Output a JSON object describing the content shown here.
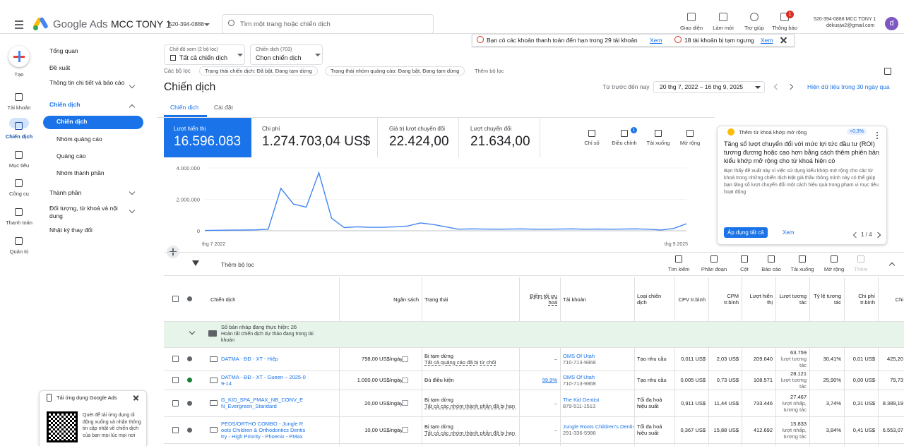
{
  "topbar": {
    "product": "Google Ads",
    "account_name": "MCC TONY 1",
    "account_id": "520-394-0888",
    "search_placeholder": "Tìm một trang hoặc chiến dịch",
    "actions": [
      "Giao diện",
      "Làm mới",
      "Trợ giúp",
      "Thông báo"
    ],
    "notification_count": 1,
    "user_line": "520-394-0888 MCC TONY 1",
    "user_email": "dekusjw2@gmail.com",
    "avatar": "d"
  },
  "alerts": [
    {
      "text": "Bạn có các khoản thanh toán đến hạn trong 29 tài khoản",
      "link": "Xem"
    },
    {
      "text": "18 tài khoản bị tạm ngưng",
      "link": "Xem"
    }
  ],
  "rail": [
    "Tạo",
    "Tài khoản",
    "Chiến dịch",
    "Mục tiêu",
    "Công cụ",
    "Thanh toán",
    "Quản trị"
  ],
  "nav": [
    "Tổng quan",
    "Đề xuất",
    "Thông tin chi tiết và báo cáo",
    "Chiến dịch",
    "Chiến dịch",
    "Nhóm quảng cáo",
    "Quảng cáo",
    "Nhóm thành phần",
    "Thành phần",
    "Đối tượng, từ khoá và nội dung",
    "Nhật ký thay đổi"
  ],
  "app_promo": {
    "title": "Tải ứng dụng Google Ads",
    "text": "Quét để tải ứng dụng di động xuống và nhận thông tin cập nhật về chiến dịch của bạn mọi lúc mọi nơi"
  },
  "filters": {
    "view_label": "Chế độ xem (2 bộ lọc)",
    "view_value": "Tất cả chiến dịch",
    "campaign_label": "Chiến dịch (703)",
    "campaign_value": "Chọn chiến dịch",
    "filters_label": "Các bộ lọc",
    "chips": [
      "Trạng thái chiến dịch: Đã bật, Đang tạm dừng",
      "Trạng thái nhóm quảng cáo: Đang bật, Đang tạm dừng"
    ],
    "add": "Thêm bộ lọc"
  },
  "header": {
    "title": "Chiến dịch",
    "range_label": "Từ trước đến nay",
    "date_range": "20 thg 7, 2022 – 16 thg 9, 2025",
    "link": "Hiện dữ liệu trong 30 ngày qua",
    "tabs": [
      "Chiến dịch",
      "Cài đặt"
    ]
  },
  "scorecards": [
    {
      "label": "Lượt hiển thị",
      "value": "16.596.083"
    },
    {
      "label": "Chi phí",
      "value": "1.274.703,04 US$"
    },
    {
      "label": "Giá trị lượt chuyển đổi",
      "value": "22.424,00"
    },
    {
      "label": "Lượt chuyển đổi",
      "value": "21.634,00"
    }
  ],
  "chart_tools": [
    "Chỉ số",
    "Điều chỉnh",
    "Tải xuống",
    "Mở rộng"
  ],
  "chart_tools_badge": 1,
  "chart_data": {
    "type": "line",
    "color": "#4285f4",
    "grid": true,
    "categories": [
      "thg 7 2022",
      null,
      null,
      null,
      null,
      null,
      null,
      null,
      null,
      null,
      null,
      null,
      null,
      null,
      null,
      null,
      null,
      null,
      null,
      null,
      null,
      null,
      null,
      null,
      null,
      null,
      null,
      null,
      null,
      null,
      null,
      null,
      null,
      null,
      null,
      null,
      null,
      null,
      "thg 9 2025"
    ],
    "values": [
      20000,
      30000,
      40000,
      50000,
      60000,
      100000,
      2700000,
      1700000,
      1500000,
      3700000,
      800000,
      200000,
      250000,
      220000,
      220000,
      250000,
      300000,
      500000,
      400000,
      250000,
      100000,
      120000,
      110000,
      100000,
      110000,
      120000,
      100000,
      100000,
      110000,
      120000,
      100000,
      110000,
      100000,
      110000,
      120000,
      100000,
      50000,
      150000,
      450000
    ],
    "ylim": [
      0,
      4000000
    ],
    "yticks": [
      0,
      {
        "value": 2000000,
        "label": "2.000.000"
      },
      {
        "value": 4000000,
        "label": "4.000.000"
      }
    ]
  },
  "recommendation": {
    "label": "Thêm từ khoá khớp mở rộng",
    "badge": "+0,3%",
    "heading": "Tăng số lượt chuyển đổi với mức lợi tức đầu tư (ROI) tương đương hoặc cao hơn bằng cách thêm phiên bản kiểu khớp mở rộng cho từ khoá hiện có",
    "body": "Bạn thấy đề xuất này vì việc sử dụng kiểu khớp mở rộng cho các từ khoá trong những chiến dịch Đặt giá thầu thông minh này có thể giúp bạn tăng số lượt chuyển đổi một cách hiệu quả trong phạm vi mục tiêu hoạt động",
    "apply": "Áp dụng tất cả",
    "view": "Xem",
    "pager": "1 / 4"
  },
  "table_tools": {
    "filter": "Thêm bộ lọc",
    "actions": [
      "Tìm kiếm",
      "Phân đoạn",
      "Cột",
      "Báo cáo",
      "Tải xuống",
      "Mở rộng",
      "Thêm"
    ]
  },
  "table": {
    "columns": [
      "Chiến dịch",
      "Ngân sách",
      "Trạng thái",
      "Điểm tối ưu hoá",
      "Tài khoản",
      "Loại chiến dịch",
      "CPV tr.bình",
      "CPM tr.bình",
      "Lượt hiển thị",
      "Lượt tương tác",
      "Tỷ lệ tương tác",
      "Chi phí tr.bình",
      "Chi"
    ],
    "draft": {
      "title": "Số bản nháp đang thực hiện: 26",
      "text": "Hoàn tất chiến dịch dự thảo đang trong tài khoản"
    },
    "rows": [
      [
        "DATMA - ĐĐ - XT - Hiệp",
        "798,00 US$/ngày",
        [
          "Bị tạm dừng",
          "Tất cả quảng cáo đã bị từ chối"
        ],
        "–",
        [
          "OMS Of Utah",
          "710-713-9868"
        ],
        "Tạo nhu cầu",
        "0,011 US$",
        "2,03 US$",
        "209.640",
        [
          "63.759",
          "lượt tương tác"
        ],
        "30,41%",
        "0,01 US$",
        "425,20"
      ],
      [
        "DATMA - ĐĐ - XT - Gueen – 2025-09-14",
        "1.000,00 US$/ngày",
        [
          "Đủ điều kiện"
        ],
        "99,9%",
        [
          "OMS Of Utah",
          "710-713-9868"
        ],
        "Tạo nhu cầu",
        "0,005 US$",
        "0,73 US$",
        "108.571",
        [
          "28.121",
          "lượt tương tác"
        ],
        "25,90%",
        "0,00 US$",
        "79,73"
      ],
      [
        "G_KID_SPA_PMAX_NB_CONV_EN_Evergreen_Standard",
        "20,00 US$/ngày",
        [
          "Bị tạm dừng",
          "Tất cả các nhóm thành phần đã bị hạn chế"
        ],
        "–",
        [
          "The Kid Dentist",
          "879-511-1513"
        ],
        "Tối đa hoá hiệu suất",
        "0,911 US$",
        "11,44 US$",
        "733.446",
        [
          "27.467",
          "lượt nhấp, tương tác"
        ],
        "3,74%",
        "0,31 US$",
        "8.389,19"
      ],
      [
        "PEDS/ORTHO COMBO - Jungle Roots Children & Orthodontics Dentistry - High Priority - Phoenix - PMax",
        "10,00 US$/ngày",
        [
          "Bị tạm dừng",
          "Tất cả các nhóm thành phần đã bị hạn chế"
        ],
        "–",
        [
          "Jungle Roots Children's Dentistry",
          "291-336-5986"
        ],
        "Tối đa hoá hiệu suất",
        "0,367 US$",
        "15,88 US$",
        "412.692",
        [
          "15.833",
          "lượt nhấp, tương tác"
        ],
        "3,84%",
        "0,41 US$",
        "6.553,07"
      ]
    ]
  }
}
